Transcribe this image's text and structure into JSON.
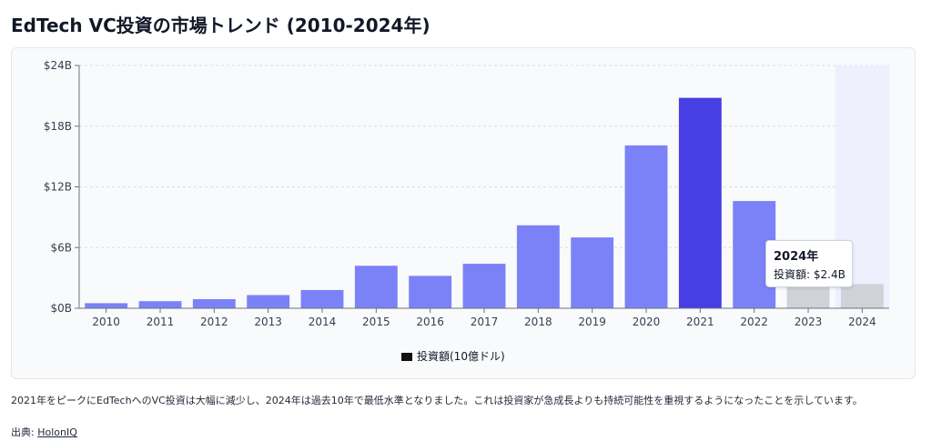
{
  "page": {
    "title": "EdTech VC投資の市場トレンド (2010-2024年)",
    "caption": "2021年をピークにEdTechへのVC投資は大幅に減少し、2024年は過去10年で最低水準となりました。これは投資家が急成長よりも持続可能性を重視するようになったことを示しています。",
    "source_label": "出典:",
    "source_link": "HolonIQ"
  },
  "tooltip": {
    "title": "2024年",
    "label": "投資額: $2.4B"
  },
  "colors": {
    "bar": "#7b82f7",
    "bar_peak": "#473ee3",
    "bar_faded": "#cfd2d8",
    "hover_band": "#eef0fe",
    "grid": "#d9dce2",
    "axis": "#6b7280"
  },
  "chart_data": {
    "type": "bar",
    "categories": [
      "2010",
      "2011",
      "2012",
      "2013",
      "2014",
      "2015",
      "2016",
      "2017",
      "2018",
      "2019",
      "2020",
      "2021",
      "2022",
      "2023",
      "2024"
    ],
    "series": [
      {
        "name": "投資額(10億ドル)",
        "values": [
          0.5,
          0.7,
          0.9,
          1.3,
          1.8,
          4.2,
          3.2,
          4.4,
          8.2,
          7.0,
          16.1,
          20.8,
          10.6,
          2.5,
          2.4
        ]
      }
    ],
    "highlight_index": 11,
    "faded_indices": [
      13,
      14
    ],
    "hover_index": 14,
    "y_ticks": [
      "$0B",
      "$6B",
      "$12B",
      "$18B",
      "$24B"
    ],
    "y_tick_values": [
      0,
      6,
      12,
      18,
      24
    ],
    "ylim": [
      0,
      24
    ],
    "grid": true,
    "legend_position": "bottom"
  }
}
